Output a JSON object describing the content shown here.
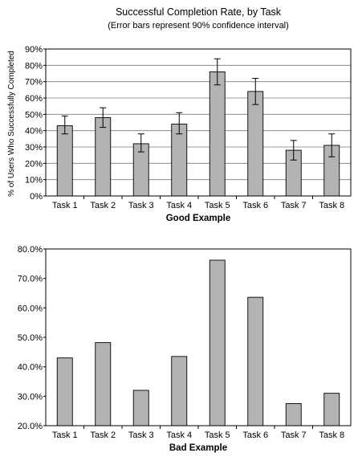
{
  "chart_data": [
    {
      "type": "bar",
      "title": "Successful Completion Rate, by Task",
      "subtitle": "(Error bars represent 90% confidence interval)",
      "ylabel": "% of Users Who Successfully Completed",
      "caption": "Good Example",
      "categories": [
        "Task 1",
        "Task 2",
        "Task 3",
        "Task 4",
        "Task 5",
        "Task 6",
        "Task 7",
        "Task 8"
      ],
      "values": [
        43,
        48,
        32,
        44,
        76,
        64,
        28,
        31
      ],
      "error_low": [
        38,
        42,
        27,
        38,
        68,
        56,
        22,
        24
      ],
      "error_high": [
        49,
        54,
        38,
        51,
        84,
        72,
        34,
        38
      ],
      "ylim": [
        0,
        90
      ],
      "yticks": [
        0,
        10,
        20,
        30,
        40,
        50,
        60,
        70,
        80,
        90
      ],
      "ytick_labels": [
        "0%",
        "10%",
        "20%",
        "30%",
        "40%",
        "50%",
        "60%",
        "70%",
        "80%",
        "90%"
      ],
      "grid": true,
      "bar_color": "#b3b3b3"
    },
    {
      "type": "bar",
      "caption": "Bad Example",
      "categories": [
        "Task 1",
        "Task 2",
        "Task 3",
        "Task 4",
        "Task 5",
        "Task 6",
        "Task 7",
        "Task 8"
      ],
      "values": [
        43.0,
        48.2,
        32.0,
        43.5,
        76.2,
        63.6,
        27.5,
        31.0
      ],
      "ylim": [
        20,
        80
      ],
      "yticks": [
        20,
        30,
        40,
        50,
        60,
        70,
        80
      ],
      "ytick_labels": [
        "20.0%",
        "30.0%",
        "40.0%",
        "50.0%",
        "60.0%",
        "70.0%",
        "80.0%"
      ],
      "grid": false,
      "bar_color": "#b3b3b3"
    }
  ]
}
